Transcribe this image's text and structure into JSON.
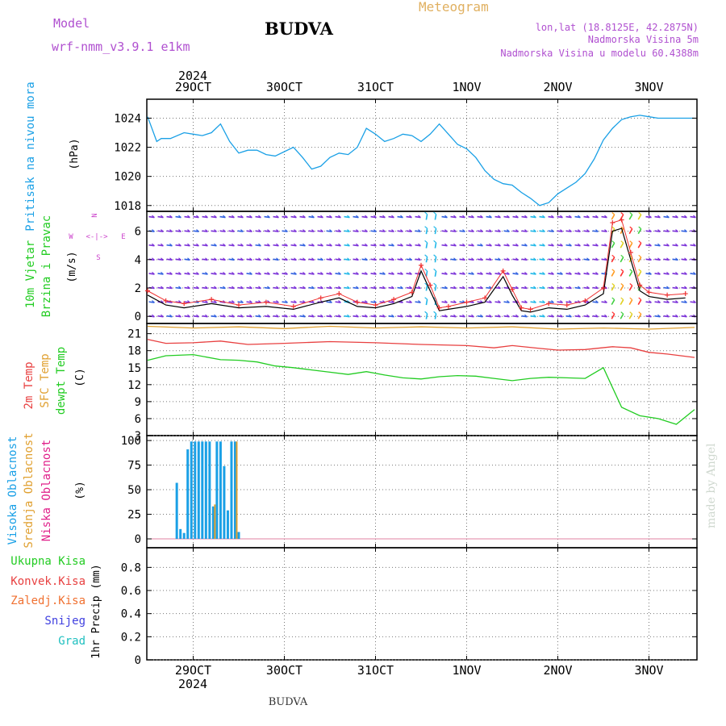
{
  "header": {
    "model_label": "Model",
    "model_name": "wrf-nmm_v3.9.1  e1km",
    "station_title": "BUDVA",
    "meteogram_title": "Meteogram",
    "coords": "lon,lat (18.8125E, 42.2875N)",
    "elevation": "Nadmorska Visina 5m",
    "model_elevation": "Nadmorska Visina u modelu 60.4388m",
    "footer_station": "BUDVA",
    "watermark": "made by Angel"
  },
  "colors": {
    "pressure": "#1aa0e6",
    "wind_speed": "#000000",
    "gust": "#ee3030",
    "temp2m": "#e84040",
    "sfc_temp": "#e0a030",
    "dewpt": "#22cc22",
    "high_cloud": "#1aa0e6",
    "mid_cloud": "#e0a030",
    "low_cloud": "#e0208a",
    "wind_title": "#22cc22",
    "compass": "#cc44cc",
    "purple_text": "#b050d0"
  },
  "time_axis": {
    "year": "2024",
    "day_labels": [
      "29OCT",
      "30OCT",
      "31OCT",
      "1NOV",
      "2NOV",
      "3NOV"
    ]
  },
  "panels": {
    "pressure": {
      "title": "Pritisak na nivou mora",
      "unit": "(hPa)",
      "ticks": [
        "1018",
        "1020",
        "1022",
        "1024"
      ]
    },
    "wind": {
      "title_line1": "10m Vjetar",
      "title_line2": "Brzina i Pravac",
      "unit": "(m/s)",
      "ticks": [
        "0",
        "2",
        "4",
        "6"
      ],
      "compass": {
        "n": "N",
        "s": "S",
        "e": "E",
        "w": "W",
        "arrows": "<-|->"
      }
    },
    "temp": {
      "label_2m": "2m Temp",
      "label_sfc": "SFC Temp",
      "label_dewpt": "dewpt Temp",
      "unit": "(C)",
      "ticks": [
        "3",
        "6",
        "9",
        "12",
        "15",
        "18",
        "21"
      ]
    },
    "cloud": {
      "label_high": "Visoka Oblacnost",
      "label_mid": "Srednja Oblacnost",
      "label_low": "Niska Oblacnost",
      "unit": "(%)",
      "ticks": [
        "0",
        "25",
        "50",
        "75",
        "100"
      ]
    },
    "precip": {
      "label_total": "Ukupna Kisa",
      "label_conv": "Konvek.Kisa",
      "label_frz": "Zaledj.Kisa",
      "label_snow": "Snijeg",
      "label_grad": "Grad",
      "unit": "1hr Precip (mm)",
      "ticks": [
        "0",
        "0.2",
        "0.4",
        "0.6",
        "0.8"
      ]
    }
  },
  "chart_data": [
    {
      "type": "line",
      "title": "Pritisak na nivou mora",
      "ylabel": "(hPa)",
      "ylim": [
        1017.6,
        1025.3
      ],
      "x_unit": "days since 29OCT 00",
      "series": [
        {
          "x": [
            -0.5,
            -0.4,
            -0.35,
            -0.25,
            -0.1,
            0,
            0.1,
            0.2,
            0.3,
            0.4,
            0.5,
            0.6,
            0.7,
            0.8,
            0.9,
            1.0,
            1.1,
            1.2,
            1.3,
            1.4,
            1.5,
            1.6,
            1.7,
            1.8,
            1.9,
            2.0,
            2.1,
            2.2,
            2.3,
            2.4,
            2.5,
            2.6,
            2.7,
            2.8,
            2.9,
            3.0,
            3.1,
            3.2,
            3.3,
            3.4,
            3.5,
            3.6,
            3.7,
            3.8,
            3.9,
            4.0,
            4.1,
            4.2,
            4.3,
            4.4,
            4.5,
            4.6,
            4.7,
            4.8,
            4.9,
            5.0,
            5.1,
            5.2,
            5.3,
            5.4,
            5.5
          ],
          "values": [
            1024.1,
            1022.4,
            1022.6,
            1022.6,
            1023.0,
            1022.9,
            1022.8,
            1023.0,
            1023.6,
            1022.4,
            1021.6,
            1021.8,
            1021.8,
            1021.5,
            1021.4,
            1021.7,
            1022.0,
            1021.3,
            1020.5,
            1020.7,
            1021.3,
            1021.6,
            1021.5,
            1022.0,
            1023.3,
            1022.9,
            1022.4,
            1022.6,
            1022.9,
            1022.8,
            1022.4,
            1022.9,
            1023.6,
            1022.9,
            1022.2,
            1021.9,
            1021.3,
            1020.4,
            1019.8,
            1019.5,
            1019.4,
            1018.9,
            1018.5,
            1018.0,
            1018.2,
            1018.8,
            1019.2,
            1019.6,
            1020.2,
            1021.2,
            1022.5,
            1023.3,
            1023.9,
            1024.1,
            1024.2,
            1024.1,
            1024.0,
            1024.0,
            1024.0,
            1024.0,
            1024.0
          ]
        }
      ]
    },
    {
      "type": "line",
      "title": "10m Vjetar Brzina i Pravac",
      "ylabel": "(m/s)",
      "ylim": [
        -0.5,
        7.4
      ],
      "x_unit": "days since 29OCT 00",
      "series": [
        {
          "name": "speed",
          "x": [
            -0.5,
            -0.3,
            -0.1,
            0.2,
            0.5,
            0.8,
            1.1,
            1.4,
            1.6,
            1.8,
            2.0,
            2.2,
            2.4,
            2.5,
            2.6,
            2.7,
            2.8,
            3.0,
            3.2,
            3.4,
            3.5,
            3.6,
            3.7,
            3.9,
            4.1,
            4.3,
            4.5,
            4.6,
            4.7,
            4.8,
            4.9,
            5.0,
            5.2,
            5.4
          ],
          "values": [
            1.5,
            0.8,
            0.6,
            0.9,
            0.6,
            0.7,
            0.5,
            1.0,
            1.3,
            0.7,
            0.6,
            0.9,
            1.4,
            3.2,
            1.8,
            0.4,
            0.5,
            0.7,
            1.0,
            2.8,
            1.5,
            0.4,
            0.3,
            0.6,
            0.5,
            0.8,
            1.6,
            6.0,
            6.2,
            4.0,
            1.8,
            1.4,
            1.2,
            1.3
          ]
        },
        {
          "name": "gust",
          "x": [
            -0.5,
            -0.3,
            -0.1,
            0.2,
            0.5,
            0.8,
            1.1,
            1.4,
            1.6,
            1.8,
            2.0,
            2.2,
            2.4,
            2.5,
            2.6,
            2.7,
            2.8,
            3.0,
            3.2,
            3.4,
            3.5,
            3.6,
            3.7,
            3.9,
            4.1,
            4.3,
            4.5,
            4.6,
            4.7,
            4.8,
            4.9,
            5.0,
            5.2,
            5.4
          ],
          "values": [
            1.8,
            1.1,
            0.9,
            1.2,
            0.8,
            1.0,
            0.7,
            1.3,
            1.6,
            1.0,
            0.8,
            1.2,
            1.7,
            3.6,
            2.2,
            0.6,
            0.7,
            1.0,
            1.3,
            3.2,
            1.9,
            0.6,
            0.5,
            0.9,
            0.8,
            1.1,
            2.0,
            6.6,
            6.8,
            4.5,
            2.2,
            1.7,
            1.5,
            1.6
          ]
        }
      ]
    },
    {
      "type": "line",
      "title": "2m / SFC / dewpt Temp",
      "ylabel": "(C)",
      "ylim": [
        3,
        22.8
      ],
      "x_unit": "days since 29OCT 00",
      "series": [
        {
          "name": "2m Temp",
          "x": [
            -0.5,
            -0.3,
            0,
            0.3,
            0.6,
            1.0,
            1.5,
            2.0,
            2.5,
            3.0,
            3.3,
            3.5,
            3.8,
            4.0,
            4.3,
            4.6,
            4.8,
            5.0,
            5.2,
            5.5
          ],
          "values": [
            20.0,
            19.3,
            19.4,
            19.7,
            19.1,
            19.3,
            19.6,
            19.4,
            19.1,
            18.9,
            18.5,
            18.9,
            18.4,
            18.1,
            18.2,
            18.7,
            18.5,
            17.7,
            17.4,
            16.8
          ]
        },
        {
          "name": "SFC Temp",
          "x": [
            -0.5,
            0,
            0.5,
            1.0,
            1.5,
            2.0,
            2.5,
            3.0,
            3.5,
            4.0,
            4.5,
            5.0,
            5.5
          ],
          "values": [
            22.3,
            22.0,
            22.2,
            21.9,
            22.3,
            22.0,
            22.2,
            22.0,
            22.2,
            21.8,
            22.0,
            21.8,
            22.1
          ]
        },
        {
          "name": "dewpt Temp",
          "x": [
            -0.5,
            -0.3,
            0,
            0.3,
            0.5,
            0.7,
            0.9,
            1.1,
            1.3,
            1.5,
            1.7,
            1.9,
            2.1,
            2.3,
            2.5,
            2.7,
            2.9,
            3.1,
            3.3,
            3.5,
            3.7,
            3.9,
            4.1,
            4.3,
            4.5,
            4.7,
            4.9,
            5.1,
            5.3,
            5.5
          ],
          "values": [
            16.3,
            17.1,
            17.3,
            16.4,
            16.3,
            16.0,
            15.3,
            15.0,
            14.6,
            14.2,
            13.8,
            14.3,
            13.7,
            13.2,
            13.0,
            13.4,
            13.6,
            13.5,
            13.1,
            12.7,
            13.1,
            13.3,
            13.2,
            13.1,
            15.0,
            8.0,
            6.5,
            6.0,
            5.0,
            7.6
          ]
        }
      ]
    },
    {
      "type": "bar",
      "title": "Oblacnost",
      "ylabel": "(%)",
      "ylim": [
        -9,
        105
      ],
      "x_unit": "days since 29OCT 00",
      "series": [
        {
          "name": "Visoka Oblacnost",
          "x": [
            -0.18,
            -0.14,
            -0.1,
            -0.06,
            -0.02,
            0.02,
            0.06,
            0.1,
            0.14,
            0.18,
            0.22,
            0.26,
            0.3,
            0.34,
            0.38,
            0.42,
            0.46,
            0.5
          ],
          "values": [
            57,
            10,
            6,
            91,
            99,
            99,
            99,
            99,
            99,
            99,
            33,
            99,
            99,
            74,
            29,
            99,
            99,
            7
          ]
        },
        {
          "name": "Srednja Oblacnost",
          "x": [
            0.22,
            0.46
          ],
          "values": [
            35,
            99
          ]
        }
      ]
    },
    {
      "type": "line",
      "title": "1hr Precip",
      "ylabel": "1hr Precip (mm)",
      "ylim": [
        0,
        0.97
      ],
      "series": [
        {
          "name": "Ukupna Kisa",
          "values": []
        }
      ]
    }
  ]
}
